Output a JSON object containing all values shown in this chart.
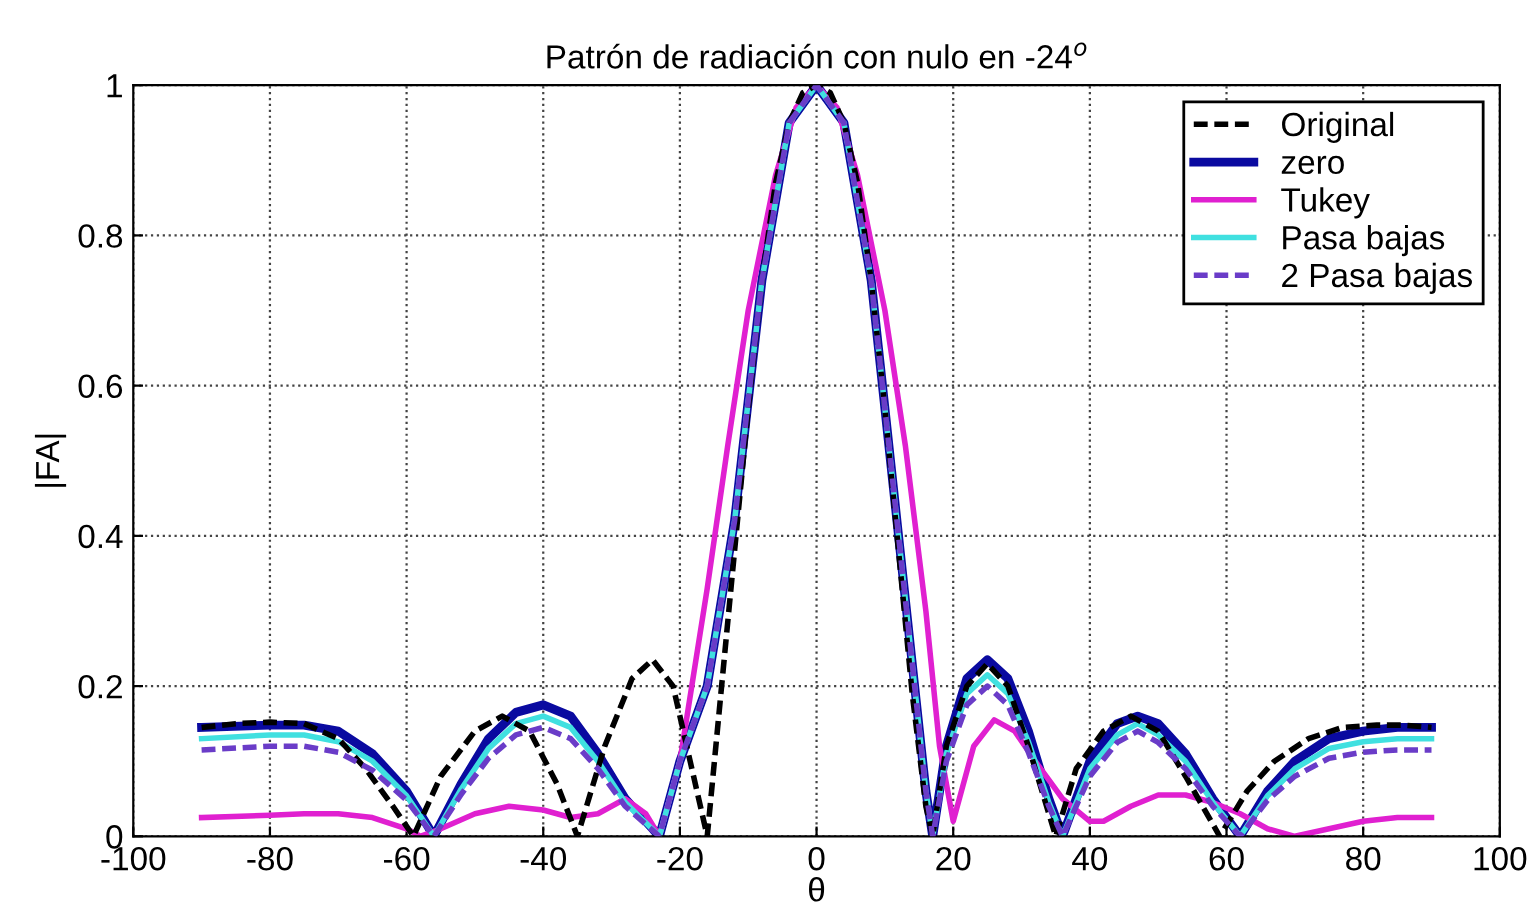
{
  "chart_data": {
    "type": "line",
    "title": "Patrón de radiación con nulo en -24$^{o}$",
    "xlabel": "θ",
    "ylabel": "|FA|",
    "xlim": [
      -100,
      100
    ],
    "xticks": [
      -100,
      -80,
      -60,
      -40,
      -20,
      0,
      20,
      40,
      60,
      80,
      100
    ],
    "ylim": [
      0,
      1
    ],
    "yticks": [
      0,
      0.2,
      0.4,
      0.6,
      0.8,
      1
    ],
    "grid": true,
    "legend": "top right",
    "series": [
      {
        "name": "Original",
        "color": "#000000",
        "line_style": "dashed",
        "x": [
          -90,
          -85,
          -80,
          -75,
          -70,
          -66,
          -62,
          -59,
          -55,
          -50,
          -46,
          -42,
          -38,
          -35,
          -31,
          -27,
          -24,
          -21,
          -18,
          -16,
          -14,
          -12,
          -10,
          -8,
          -6,
          -4,
          -2,
          0,
          2,
          4,
          6,
          8,
          10,
          12,
          14,
          16,
          17,
          19,
          22,
          25,
          28,
          31,
          35,
          38,
          42,
          46,
          50,
          54,
          59,
          63,
          67,
          72,
          77,
          82,
          86,
          90
        ],
        "values": [
          0.145,
          0.15,
          0.152,
          0.15,
          0.13,
          0.09,
          0.04,
          0,
          0.08,
          0.14,
          0.16,
          0.14,
          0.07,
          0,
          0.12,
          0.21,
          0.235,
          0.2,
          0.08,
          0,
          0.19,
          0.38,
          0.57,
          0.74,
          0.87,
          0.95,
          0.99,
          1,
          0.99,
          0.95,
          0.87,
          0.74,
          0.57,
          0.38,
          0.19,
          0.04,
          0,
          0.12,
          0.2,
          0.23,
          0.2,
          0.12,
          0,
          0.09,
          0.14,
          0.16,
          0.14,
          0.08,
          0,
          0.06,
          0.1,
          0.13,
          0.145,
          0.148,
          0.148,
          0.145
        ]
      },
      {
        "name": "zero",
        "color": "#0a0aa0",
        "line_style": "solid",
        "x": [
          -90,
          -80,
          -75,
          -70,
          -65,
          -60,
          -56,
          -52,
          -48,
          -44,
          -40,
          -36,
          -32,
          -28,
          -25,
          -23,
          -20,
          -16,
          -12,
          -8,
          -4,
          0,
          4,
          8,
          12,
          16,
          17,
          19,
          22,
          25,
          28,
          31,
          34,
          36,
          40,
          44,
          47,
          50,
          54,
          58,
          62,
          66,
          70,
          75,
          80,
          85,
          90
        ],
        "values": [
          0.145,
          0.148,
          0.148,
          0.14,
          0.11,
          0.06,
          0,
          0.07,
          0.13,
          0.165,
          0.175,
          0.16,
          0.11,
          0.05,
          0.02,
          0,
          0.1,
          0.2,
          0.42,
          0.74,
          0.95,
          1,
          0.95,
          0.74,
          0.4,
          0.06,
          0,
          0.12,
          0.21,
          0.235,
          0.21,
          0.14,
          0.05,
          0,
          0.1,
          0.15,
          0.16,
          0.15,
          0.11,
          0.05,
          0,
          0.06,
          0.1,
          0.13,
          0.14,
          0.145,
          0.145
        ]
      },
      {
        "name": "Tukey",
        "color": "#e020d0",
        "line_style": "solid",
        "x": [
          -90,
          -80,
          -75,
          -70,
          -65,
          -60,
          -58,
          -55,
          -50,
          -45,
          -40,
          -36,
          -32,
          -28,
          -25,
          -23,
          -20,
          -16,
          -13,
          -10,
          -6,
          -3,
          0,
          3,
          6,
          10,
          13,
          16,
          18,
          20,
          23,
          26,
          29,
          32,
          36,
          40,
          42,
          46,
          50,
          54,
          58,
          62,
          66,
          70,
          75,
          80,
          85,
          90
        ],
        "values": [
          0.025,
          0.028,
          0.03,
          0.03,
          0.025,
          0.01,
          0,
          0.01,
          0.03,
          0.04,
          0.035,
          0.025,
          0.03,
          0.05,
          0.03,
          0,
          0.1,
          0.33,
          0.52,
          0.7,
          0.88,
          0.97,
          1,
          0.97,
          0.88,
          0.7,
          0.52,
          0.3,
          0.12,
          0.02,
          0.12,
          0.155,
          0.14,
          0.1,
          0.05,
          0.02,
          0.02,
          0.04,
          0.055,
          0.055,
          0.045,
          0.03,
          0.01,
          0,
          0.01,
          0.02,
          0.025,
          0.025
        ]
      },
      {
        "name": "Pasa bajas",
        "color": "#40e0e0",
        "line_style": "solid",
        "x": [
          -90,
          -80,
          -75,
          -70,
          -65,
          -60,
          -56,
          -52,
          -48,
          -44,
          -40,
          -36,
          -32,
          -28,
          -25,
          -23,
          -20,
          -16,
          -12,
          -8,
          -4,
          0,
          4,
          8,
          12,
          16,
          17,
          19,
          22,
          25,
          28,
          31,
          34,
          36,
          40,
          44,
          47,
          50,
          54,
          58,
          62,
          66,
          70,
          75,
          80,
          85,
          90
        ],
        "values": [
          0.13,
          0.135,
          0.135,
          0.126,
          0.1,
          0.054,
          0,
          0.063,
          0.117,
          0.15,
          0.16,
          0.145,
          0.1,
          0.045,
          0.018,
          0,
          0.1,
          0.2,
          0.42,
          0.74,
          0.95,
          1,
          0.95,
          0.74,
          0.4,
          0.06,
          0,
          0.11,
          0.19,
          0.215,
          0.19,
          0.126,
          0.045,
          0,
          0.09,
          0.135,
          0.15,
          0.135,
          0.1,
          0.045,
          0,
          0.054,
          0.09,
          0.117,
          0.126,
          0.13,
          0.13
        ]
      },
      {
        "name": "2 Pasa bajas",
        "color": "#6a3cc8",
        "line_style": "dashed",
        "x": [
          -90,
          -80,
          -75,
          -70,
          -65,
          -60,
          -56,
          -52,
          -48,
          -44,
          -40,
          -36,
          -32,
          -28,
          -25,
          -23,
          -20,
          -16,
          -12,
          -8,
          -4,
          0,
          4,
          8,
          12,
          16,
          17,
          19,
          22,
          25,
          28,
          31,
          34,
          36,
          40,
          44,
          47,
          50,
          54,
          58,
          62,
          66,
          70,
          75,
          80,
          85,
          90
        ],
        "values": [
          0.115,
          0.12,
          0.12,
          0.112,
          0.088,
          0.048,
          0,
          0.056,
          0.104,
          0.135,
          0.145,
          0.13,
          0.09,
          0.04,
          0.016,
          0,
          0.1,
          0.2,
          0.42,
          0.74,
          0.95,
          1,
          0.95,
          0.74,
          0.4,
          0.06,
          0,
          0.1,
          0.175,
          0.2,
          0.175,
          0.112,
          0.04,
          0,
          0.08,
          0.125,
          0.14,
          0.125,
          0.09,
          0.04,
          0,
          0.048,
          0.08,
          0.104,
          0.112,
          0.115,
          0.115
        ]
      }
    ]
  }
}
